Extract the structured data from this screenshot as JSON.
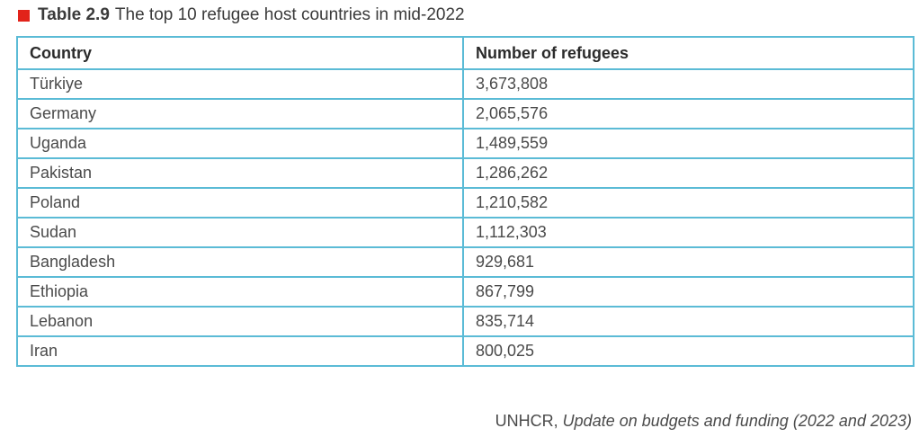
{
  "caption": {
    "label": "Table 2.9",
    "text": "The top 10 refugee host countries in mid-2022",
    "marker_color": "#e2231a"
  },
  "table": {
    "headers": [
      "Country",
      "Number of refugees"
    ],
    "rows": [
      {
        "country": "Türkiye",
        "refugees": "3,673,808"
      },
      {
        "country": "Germany",
        "refugees": "2,065,576"
      },
      {
        "country": "Uganda",
        "refugees": "1,489,559"
      },
      {
        "country": "Pakistan",
        "refugees": "1,286,262"
      },
      {
        "country": "Poland",
        "refugees": "1,210,582"
      },
      {
        "country": "Sudan",
        "refugees": "1,112,303"
      },
      {
        "country": "Bangladesh",
        "refugees": "929,681"
      },
      {
        "country": "Ethiopia",
        "refugees": "867,799"
      },
      {
        "country": "Lebanon",
        "refugees": "835,714"
      },
      {
        "country": "Iran",
        "refugees": "800,025"
      }
    ],
    "border_color": "#5bbbd6"
  },
  "source": {
    "org": "UNHCR, ",
    "title": "Update on budgets and funding (2022 and 2023)"
  }
}
